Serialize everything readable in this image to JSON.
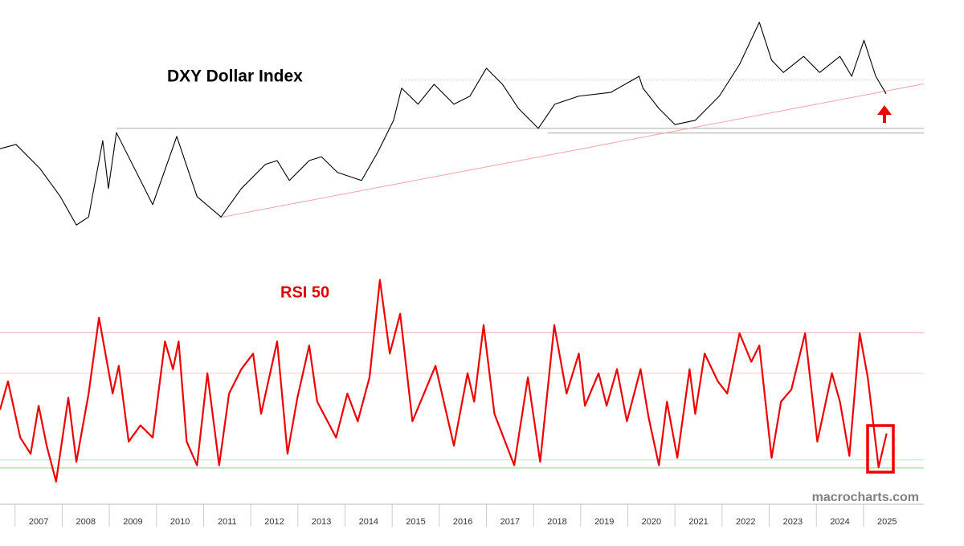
{
  "chart_data": [
    {
      "type": "line",
      "title": "DXY Dollar Index",
      "xlim": [
        2006.68,
        2026.28
      ],
      "ylim": [
        68.65,
        119.5
      ],
      "x": [
        2006.68,
        2007.02,
        2007.53,
        2007.96,
        2008.3,
        2008.56,
        2008.86,
        2008.98,
        2009.15,
        2009.92,
        2010.43,
        2010.86,
        2011.37,
        2011.8,
        2012.31,
        2012.56,
        2012.82,
        2013.24,
        2013.5,
        2013.84,
        2014.35,
        2014.69,
        2015.03,
        2015.2,
        2015.55,
        2015.89,
        2016.31,
        2016.65,
        2017.0,
        2017.34,
        2017.68,
        2018.1,
        2018.45,
        2018.96,
        2019.64,
        2020.24,
        2020.32,
        2020.66,
        2021.0,
        2021.43,
        2021.94,
        2022.37,
        2022.79,
        2023.05,
        2023.3,
        2023.73,
        2024.07,
        2024.5,
        2024.75,
        2025.01,
        2025.26,
        2025.48
      ],
      "series": [
        {
          "color": "#000000",
          "values": [
            88.1,
            89,
            83.9,
            78,
            72,
            73.7,
            89.8,
            79.7,
            91.5,
            76.3,
            90.7,
            78,
            73.7,
            79.7,
            84.8,
            85.6,
            81.4,
            85.6,
            86.4,
            83.1,
            81.4,
            87.3,
            94.1,
            100.9,
            97.5,
            101.7,
            97.5,
            99.2,
            105.1,
            101.7,
            96.6,
            92.4,
            97.5,
            99.2,
            100,
            103.4,
            100.9,
            96.6,
            93.2,
            94.1,
            99.2,
            105.9,
            114.8,
            106.8,
            104.2,
            107.6,
            104.2,
            107.6,
            103.4,
            111,
            103.4,
            99.7
          ]
        }
      ],
      "hlines": [
        {
          "value": 102.6,
          "x0": 2015.2,
          "color": "#cccccc",
          "style": "dotted"
        },
        {
          "value": 92.4,
          "x0": 2009.15,
          "color": "#aaaaaa",
          "style": "solid"
        },
        {
          "value": 91.4,
          "x0": 2018.3,
          "color": "#aaaaaa",
          "style": "solid"
        }
      ],
      "trendline": {
        "x": [
          2011.3,
          2026.28
        ],
        "values": [
          73.5,
          101.8
        ],
        "color": "#f2a8a8"
      }
    },
    {
      "type": "line",
      "title": "RSI 50",
      "xlim": [
        2006.68,
        2026.28
      ],
      "ylim": [
        35,
        70
      ],
      "x": [
        2006.68,
        2006.85,
        2007.11,
        2007.33,
        2007.5,
        2007.67,
        2007.87,
        2008.13,
        2008.3,
        2008.56,
        2008.78,
        2009.07,
        2009.2,
        2009.41,
        2009.66,
        2009.92,
        2010.18,
        2010.35,
        2010.47,
        2010.64,
        2010.86,
        2011.08,
        2011.33,
        2011.54,
        2011.8,
        2012.05,
        2012.22,
        2012.56,
        2012.78,
        2012.99,
        2013.24,
        2013.41,
        2013.81,
        2014.05,
        2014.27,
        2014.52,
        2014.74,
        2014.95,
        2015.17,
        2015.43,
        2015.92,
        2016.31,
        2016.6,
        2016.74,
        2016.94,
        2017.17,
        2017.59,
        2017.88,
        2018.14,
        2018.44,
        2018.7,
        2018.96,
        2019.09,
        2019.38,
        2019.55,
        2019.77,
        2019.98,
        2020.27,
        2020.44,
        2020.66,
        2020.83,
        2021.05,
        2021.31,
        2021.43,
        2021.63,
        2021.91,
        2022.11,
        2022.37,
        2022.62,
        2022.79,
        2023.05,
        2023.25,
        2023.47,
        2023.76,
        2024.02,
        2024.33,
        2024.5,
        2024.7,
        2024.92,
        2025.09,
        2025.32,
        2025.49
      ],
      "series": [
        {
          "color": "#ee0000",
          "values": [
            48.6,
            52.8,
            44.5,
            42.1,
            49.2,
            43.3,
            38,
            50.4,
            40.9,
            51,
            62.2,
            51,
            55.1,
            43.9,
            46.3,
            44.5,
            58.7,
            54.6,
            58.7,
            43.9,
            40.4,
            54,
            40.4,
            51,
            54.6,
            56.9,
            48,
            58.7,
            42.1,
            50.4,
            58.1,
            49.8,
            44.5,
            51,
            46.9,
            53.4,
            67.8,
            56.9,
            62.8,
            46.9,
            55.1,
            43.3,
            54,
            49.8,
            61.1,
            48,
            40.4,
            53.4,
            40.9,
            61.1,
            51,
            56.9,
            49.2,
            54,
            49.2,
            54.6,
            46.9,
            54.6,
            47.5,
            40.4,
            49.8,
            41.5,
            54.6,
            48,
            56.9,
            52.8,
            51,
            59.9,
            55.7,
            58.1,
            41.5,
            49.8,
            51.6,
            59.9,
            43.9,
            54,
            49.8,
            41.8,
            59.9,
            53.4,
            40.1,
            45.1
          ]
        }
      ],
      "hlines": [
        {
          "value": 60,
          "x0": 2006.68,
          "color": "#f2a8a8",
          "style": "solid"
        },
        {
          "value": 54,
          "x0": 2006.68,
          "color": "#f6c4c4",
          "style": "solid"
        },
        {
          "value": 41.2,
          "x0": 2006.68,
          "color": "#bfe3d6",
          "style": "solid"
        },
        {
          "value": 40,
          "x0": 2006.68,
          "color": "#88d088",
          "style": "solid"
        }
      ],
      "xticks": [
        2007,
        2008,
        2009,
        2010,
        2011,
        2012,
        2013,
        2014,
        2015,
        2016,
        2017,
        2018,
        2019,
        2020,
        2021,
        2022,
        2023,
        2024,
        2025
      ]
    }
  ],
  "source": "macrocharts.com"
}
